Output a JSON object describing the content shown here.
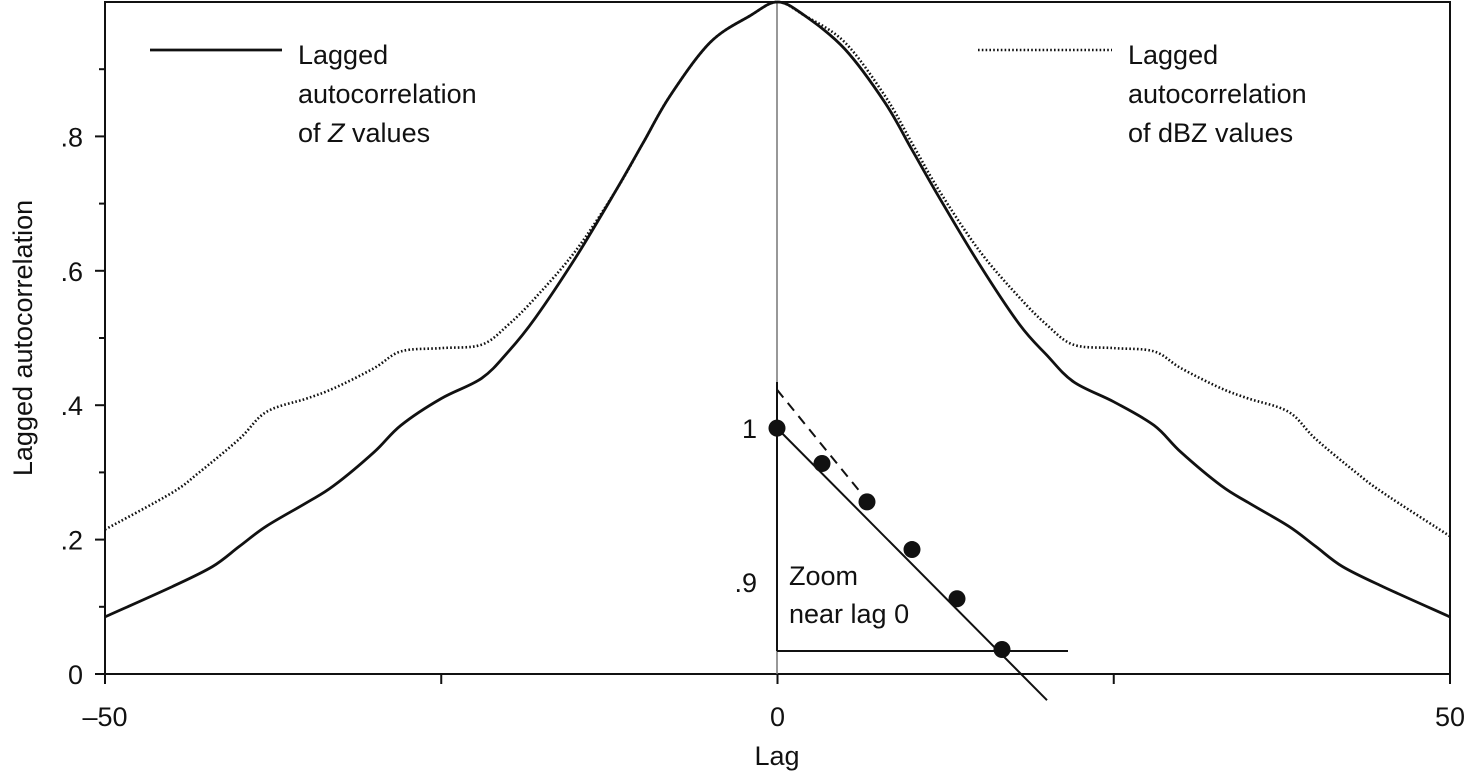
{
  "chart_data": {
    "type": "line",
    "title": "",
    "xlabel": "Lag",
    "ylabel": "Lagged autocorrelation",
    "xlim": [
      -50,
      50
    ],
    "ylim": [
      0,
      1
    ],
    "grid": false,
    "x_ticks": [
      {
        "value": -50,
        "label": "–50"
      },
      {
        "value": -25,
        "label": ""
      },
      {
        "value": 0,
        "label": "0"
      },
      {
        "value": 25,
        "label": ""
      },
      {
        "value": 50,
        "label": "50"
      }
    ],
    "y_ticks": [
      {
        "value": 0,
        "label": "0"
      },
      {
        "value": 0.2,
        "label": ".2"
      },
      {
        "value": 0.4,
        "label": ".4"
      },
      {
        "value": 0.6,
        "label": ".6"
      },
      {
        "value": 0.8,
        "label": ".8"
      }
    ],
    "y_minor_ticks": [
      0.1,
      0.3,
      0.5,
      0.7,
      0.9
    ],
    "series": [
      {
        "name_lines": [
          "Lagged",
          "autocorrelation",
          "of Z values"
        ],
        "style": "solid",
        "legend_position": "top-left",
        "x": [
          -50,
          -45,
          -42,
          -40,
          -38,
          -35,
          -33,
          -30,
          -28,
          -25,
          -22,
          -20,
          -18,
          -15,
          -12,
          -10,
          -8,
          -5,
          -2,
          0,
          2,
          5,
          8,
          10,
          12,
          15,
          18,
          20,
          22,
          25,
          28,
          30,
          33,
          35,
          38,
          40,
          42,
          45,
          50
        ],
        "y": [
          0.085,
          0.13,
          0.16,
          0.19,
          0.22,
          0.255,
          0.28,
          0.33,
          0.37,
          0.41,
          0.44,
          0.48,
          0.53,
          0.62,
          0.72,
          0.79,
          0.86,
          0.94,
          0.98,
          1.0,
          0.98,
          0.93,
          0.85,
          0.78,
          0.71,
          0.61,
          0.52,
          0.475,
          0.435,
          0.405,
          0.37,
          0.33,
          0.28,
          0.255,
          0.22,
          0.19,
          0.16,
          0.13,
          0.085
        ]
      },
      {
        "name_lines": [
          "Lagged",
          "autocorrelation",
          "of dBZ values"
        ],
        "style": "dotted",
        "legend_position": "top-right",
        "x": [
          -50,
          -45,
          -43,
          -40,
          -38,
          -35,
          -33,
          -30,
          -28,
          -25,
          -22,
          -20,
          -18,
          -15,
          -12,
          -10,
          -8,
          -5,
          -2,
          0,
          2,
          5,
          8,
          10,
          12,
          15,
          18,
          20,
          22,
          25,
          28,
          30,
          33,
          35,
          38,
          40,
          43,
          45,
          50
        ],
        "y": [
          0.215,
          0.27,
          0.3,
          0.35,
          0.39,
          0.41,
          0.425,
          0.455,
          0.48,
          0.485,
          0.49,
          0.52,
          0.56,
          0.63,
          0.72,
          0.79,
          0.86,
          0.94,
          0.98,
          1.0,
          0.98,
          0.94,
          0.86,
          0.79,
          0.72,
          0.63,
          0.56,
          0.52,
          0.49,
          0.485,
          0.48,
          0.455,
          0.425,
          0.41,
          0.39,
          0.35,
          0.3,
          0.27,
          0.205
        ]
      }
    ],
    "inset": {
      "label_lines": [
        "Zoom",
        "near lag 0"
      ],
      "y_tick_labels": [
        {
          "value": 1.0,
          "label": "1"
        },
        {
          "value": 0.9,
          "label": ".9"
        }
      ],
      "ylim": [
        0.855,
        1.03
      ],
      "points": [
        {
          "lag": 0,
          "value": 1.0
        },
        {
          "lag": 1,
          "value": 0.977
        },
        {
          "lag": 2,
          "value": 0.952
        },
        {
          "lag": 3,
          "value": 0.921
        },
        {
          "lag": 4,
          "value": 0.889
        },
        {
          "lag": 5,
          "value": 0.856
        }
      ],
      "solid_line": {
        "from": [
          0,
          1.0
        ],
        "to": [
          6,
          0.823
        ]
      },
      "dashed_line": {
        "from": [
          0,
          1.025
        ],
        "to": [
          2,
          0.953
        ]
      }
    }
  }
}
